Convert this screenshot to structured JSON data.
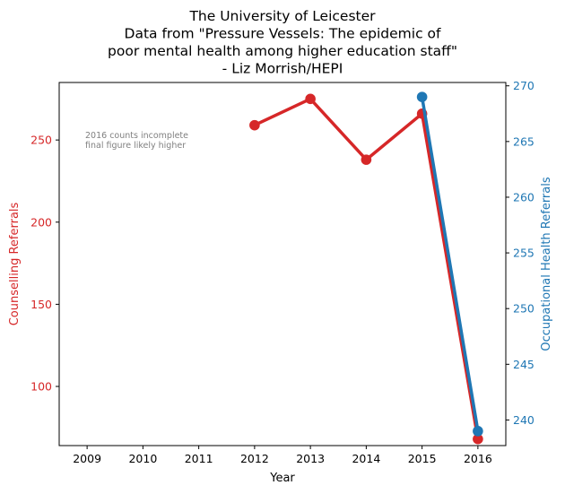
{
  "chart_data": {
    "type": "line",
    "title_lines": [
      "The University of Leicester",
      "Data from \"Pressure Vessels: The epidemic of",
      "poor mental health among higher education staff\"",
      "- Liz Morrish/HEPI"
    ],
    "xlabel": "Year",
    "x_ticks": [
      2009,
      2010,
      2011,
      2012,
      2013,
      2014,
      2015,
      2016
    ],
    "xlim": [
      2008.5,
      2016.5
    ],
    "left_axis": {
      "label": "Counselling Referrals",
      "ylim": [
        64,
        285
      ],
      "ticks": [
        100,
        150,
        200,
        250
      ],
      "color": "#d62728"
    },
    "right_axis": {
      "label": "Occupational Health Referrals",
      "ylim": [
        237.7,
        270.3
      ],
      "ticks": [
        240,
        245,
        250,
        255,
        260,
        265,
        270
      ],
      "color": "#1f77b4"
    },
    "series": [
      {
        "name": "Counselling Referrals",
        "axis": "left",
        "color": "#d62728",
        "x": [
          2012,
          2013,
          2014,
          2015,
          2016
        ],
        "y": [
          259,
          275,
          238,
          266,
          68
        ]
      },
      {
        "name": "Occupational Health Referrals",
        "axis": "right",
        "color": "#1f77b4",
        "x": [
          2015,
          2016
        ],
        "y": [
          269,
          239
        ]
      }
    ],
    "annotation": {
      "lines": [
        "2016 counts incomplete",
        "final figure likely higher"
      ],
      "color": "#808080"
    },
    "grid": false
  }
}
